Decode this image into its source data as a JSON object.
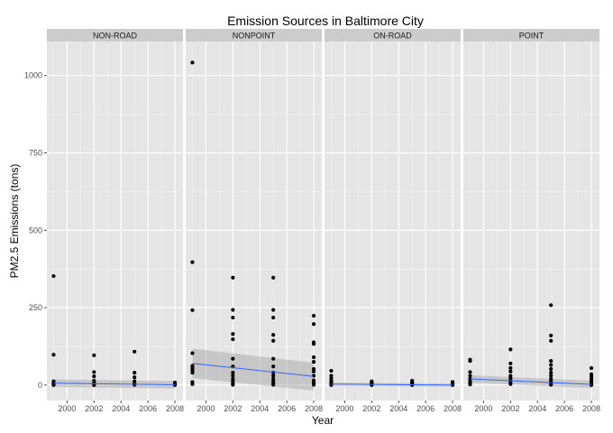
{
  "chart_data": {
    "type": "scatter",
    "title": "Emission Sources in Baltimore City",
    "xlabel": "Year",
    "ylabel": "PM2.5 Emissions (tons)",
    "xlim": [
      1998.5,
      2008.6
    ],
    "ylim": [
      -50,
      1110
    ],
    "x_ticks": [
      2000,
      2002,
      2004,
      2006,
      2008
    ],
    "y_ticks": [
      0,
      250,
      500,
      750,
      1000
    ],
    "grid": true,
    "facet_by": "type",
    "smooth": "linear fit with confidence band",
    "colors": {
      "panel_bg": "#e5e5e5",
      "grid_major": "#ffffff",
      "grid_minor": "#f2f2f2",
      "strip_bg": "#cccccc",
      "point": "#000000",
      "fit_line": "#3366ff",
      "band": "#999999"
    },
    "panels": [
      {
        "name": "NON-ROAD",
        "points": [
          {
            "x": 1999,
            "y": 352
          },
          {
            "x": 1999,
            "y": 98
          },
          {
            "x": 1999,
            "y": 12
          },
          {
            "x": 1999,
            "y": 8
          },
          {
            "x": 1999,
            "y": 4
          },
          {
            "x": 1999,
            "y": 1
          },
          {
            "x": 1999,
            "y": 0
          },
          {
            "x": 2002,
            "y": 96
          },
          {
            "x": 2002,
            "y": 42
          },
          {
            "x": 2002,
            "y": 28
          },
          {
            "x": 2002,
            "y": 14
          },
          {
            "x": 2002,
            "y": 7
          },
          {
            "x": 2002,
            "y": 2
          },
          {
            "x": 2002,
            "y": 0
          },
          {
            "x": 2005,
            "y": 108
          },
          {
            "x": 2005,
            "y": 40
          },
          {
            "x": 2005,
            "y": 25
          },
          {
            "x": 2005,
            "y": 12
          },
          {
            "x": 2005,
            "y": 5
          },
          {
            "x": 2005,
            "y": 1
          },
          {
            "x": 2008,
            "y": 8
          },
          {
            "x": 2008,
            "y": 4
          },
          {
            "x": 2008,
            "y": 2
          },
          {
            "x": 2008,
            "y": 0
          }
        ],
        "fit": {
          "start": [
            1999,
            6
          ],
          "end": [
            2008,
            1
          ]
        },
        "band": {
          "start": [
            1999,
            18,
            -6
          ],
          "end": [
            2008,
            13,
            -11
          ]
        }
      },
      {
        "name": "NONPOINT",
        "points": [
          {
            "x": 1999,
            "y": 1042
          },
          {
            "x": 1999,
            "y": 397
          },
          {
            "x": 1999,
            "y": 242
          },
          {
            "x": 1999,
            "y": 103
          },
          {
            "x": 1999,
            "y": 62
          },
          {
            "x": 1999,
            "y": 55
          },
          {
            "x": 1999,
            "y": 48
          },
          {
            "x": 1999,
            "y": 40
          },
          {
            "x": 1999,
            "y": 10
          },
          {
            "x": 1999,
            "y": 3
          },
          {
            "x": 2002,
            "y": 347
          },
          {
            "x": 2002,
            "y": 243
          },
          {
            "x": 2002,
            "y": 218
          },
          {
            "x": 2002,
            "y": 165
          },
          {
            "x": 2002,
            "y": 148
          },
          {
            "x": 2002,
            "y": 85
          },
          {
            "x": 2002,
            "y": 60
          },
          {
            "x": 2002,
            "y": 40
          },
          {
            "x": 2002,
            "y": 30
          },
          {
            "x": 2002,
            "y": 20
          },
          {
            "x": 2002,
            "y": 12
          },
          {
            "x": 2002,
            "y": 5
          },
          {
            "x": 2002,
            "y": 1
          },
          {
            "x": 2005,
            "y": 347
          },
          {
            "x": 2005,
            "y": 243
          },
          {
            "x": 2005,
            "y": 218
          },
          {
            "x": 2005,
            "y": 162
          },
          {
            "x": 2005,
            "y": 143
          },
          {
            "x": 2005,
            "y": 85
          },
          {
            "x": 2005,
            "y": 60
          },
          {
            "x": 2005,
            "y": 40
          },
          {
            "x": 2005,
            "y": 30
          },
          {
            "x": 2005,
            "y": 20
          },
          {
            "x": 2005,
            "y": 12
          },
          {
            "x": 2005,
            "y": 5
          },
          {
            "x": 2005,
            "y": 1
          },
          {
            "x": 2008,
            "y": 224
          },
          {
            "x": 2008,
            "y": 197
          },
          {
            "x": 2008,
            "y": 138
          },
          {
            "x": 2008,
            "y": 133
          },
          {
            "x": 2008,
            "y": 90
          },
          {
            "x": 2008,
            "y": 75
          },
          {
            "x": 2008,
            "y": 52
          },
          {
            "x": 2008,
            "y": 44
          },
          {
            "x": 2008,
            "y": 30
          },
          {
            "x": 2008,
            "y": 15
          },
          {
            "x": 2008,
            "y": 8
          },
          {
            "x": 2008,
            "y": 3
          },
          {
            "x": 2008,
            "y": 1
          }
        ],
        "fit": {
          "start": [
            1999,
            70
          ],
          "end": [
            2008,
            28
          ]
        },
        "band": {
          "start": [
            1999,
            118,
            22
          ],
          "end": [
            2008,
            72,
            -18
          ]
        }
      },
      {
        "name": "ON-ROAD",
        "points": [
          {
            "x": 1999,
            "y": 46
          },
          {
            "x": 1999,
            "y": 30
          },
          {
            "x": 1999,
            "y": 22
          },
          {
            "x": 1999,
            "y": 14
          },
          {
            "x": 1999,
            "y": 9
          },
          {
            "x": 1999,
            "y": 5
          },
          {
            "x": 1999,
            "y": 2
          },
          {
            "x": 1999,
            "y": 0
          },
          {
            "x": 2002,
            "y": 12
          },
          {
            "x": 2002,
            "y": 8
          },
          {
            "x": 2002,
            "y": 5
          },
          {
            "x": 2002,
            "y": 2
          },
          {
            "x": 2002,
            "y": 0
          },
          {
            "x": 2005,
            "y": 14
          },
          {
            "x": 2005,
            "y": 10
          },
          {
            "x": 2005,
            "y": 6
          },
          {
            "x": 2005,
            "y": 3
          },
          {
            "x": 2005,
            "y": 0
          },
          {
            "x": 2008,
            "y": 10
          },
          {
            "x": 2008,
            "y": 6
          },
          {
            "x": 2008,
            "y": 3
          },
          {
            "x": 2008,
            "y": 0
          }
        ],
        "fit": {
          "start": [
            1999,
            3
          ],
          "end": [
            2008,
            0
          ]
        },
        "band": {
          "start": [
            1999,
            8,
            -2
          ],
          "end": [
            2008,
            5,
            -5
          ]
        }
      },
      {
        "name": "POINT",
        "points": [
          {
            "x": 1999,
            "y": 82
          },
          {
            "x": 1999,
            "y": 78
          },
          {
            "x": 1999,
            "y": 42
          },
          {
            "x": 1999,
            "y": 30
          },
          {
            "x": 1999,
            "y": 20
          },
          {
            "x": 1999,
            "y": 12
          },
          {
            "x": 1999,
            "y": 6
          },
          {
            "x": 1999,
            "y": 2
          },
          {
            "x": 2002,
            "y": 115
          },
          {
            "x": 2002,
            "y": 70
          },
          {
            "x": 2002,
            "y": 55
          },
          {
            "x": 2002,
            "y": 44
          },
          {
            "x": 2002,
            "y": 30
          },
          {
            "x": 2002,
            "y": 22
          },
          {
            "x": 2002,
            "y": 15
          },
          {
            "x": 2002,
            "y": 8
          },
          {
            "x": 2002,
            "y": 3
          },
          {
            "x": 2005,
            "y": 258
          },
          {
            "x": 2005,
            "y": 160
          },
          {
            "x": 2005,
            "y": 143
          },
          {
            "x": 2005,
            "y": 78
          },
          {
            "x": 2005,
            "y": 65
          },
          {
            "x": 2005,
            "y": 52
          },
          {
            "x": 2005,
            "y": 40
          },
          {
            "x": 2005,
            "y": 30
          },
          {
            "x": 2005,
            "y": 20
          },
          {
            "x": 2005,
            "y": 12
          },
          {
            "x": 2005,
            "y": 5
          },
          {
            "x": 2005,
            "y": 1
          },
          {
            "x": 2008,
            "y": 55
          },
          {
            "x": 2008,
            "y": 35
          },
          {
            "x": 2008,
            "y": 28
          },
          {
            "x": 2008,
            "y": 20
          },
          {
            "x": 2008,
            "y": 14
          },
          {
            "x": 2008,
            "y": 8
          },
          {
            "x": 2008,
            "y": 3
          },
          {
            "x": 2008,
            "y": 0
          }
        ],
        "fit": {
          "start": [
            1999,
            20
          ],
          "end": [
            2008,
            2
          ]
        },
        "band": {
          "start": [
            1999,
            32,
            8
          ],
          "end": [
            2008,
            14,
            -10
          ]
        }
      }
    ]
  }
}
